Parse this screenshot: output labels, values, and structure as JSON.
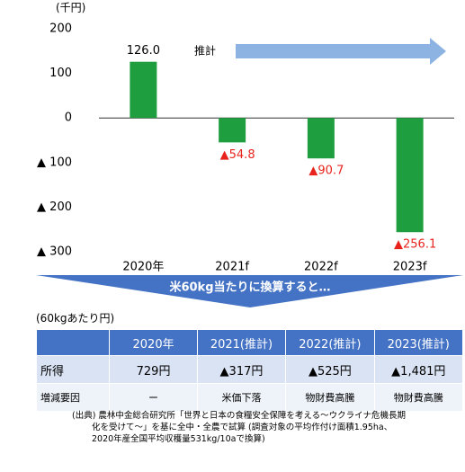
{
  "chart_data": {
    "type": "bar",
    "unit": "(千円)",
    "annotation": "推計",
    "categories": [
      "2020年",
      "2021f",
      "2022f",
      "2023f"
    ],
    "values": [
      126.0,
      -54.8,
      -90.7,
      -256.1
    ],
    "value_labels": [
      "126.0",
      "▲54.8",
      "▲90.7",
      "▲256.1"
    ],
    "color": "#1f9e3f",
    "negative_label_color": "#e8231d",
    "ylim": [
      -300,
      200
    ],
    "yticks": [
      200,
      100,
      0,
      {
        "value": -100,
        "label": "▲ 100"
      },
      {
        "value": -200,
        "label": "▲ 200"
      },
      {
        "value": -300,
        "label": "▲ 300"
      }
    ]
  },
  "banner": "米60kg当たりに換算すると…",
  "table": {
    "unit": "(60kgあたり円)",
    "header": [
      "",
      "2020年",
      "2021(推計)",
      "2022(推計)",
      "2023(推計)"
    ],
    "rows": [
      [
        "所得",
        "729円",
        "▲317円",
        "▲525円",
        "▲1,481円"
      ],
      [
        "増減要因",
        "ー",
        "米価下落",
        "物財費高騰",
        "物財費高騰"
      ]
    ]
  },
  "note": [
    "(出典) 農林中金総合研究所「世界と日本の食糧安全保障を考える～ウクライナ危機長期",
    "化を受けて～」を基に全中・全農で試算 (調査対象の平均作付け面積1.95ha、",
    "2020年産全国平均収穫量531kg/10aで換算)"
  ]
}
